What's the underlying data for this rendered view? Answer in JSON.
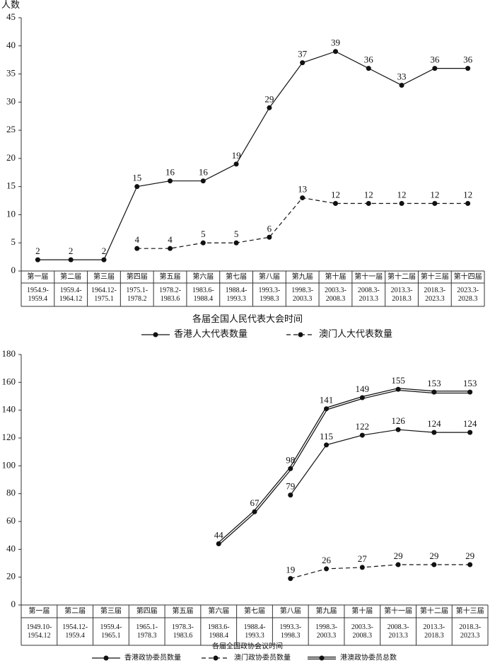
{
  "chart_data": [
    {
      "type": "line",
      "y_label": "人数",
      "x_label": "各届全国人民代表大会时间",
      "categories": [
        "第一届",
        "第二届",
        "第三届",
        "第四届",
        "第五届",
        "第六届",
        "第七届",
        "第八届",
        "第九届",
        "第十届",
        "第十一届",
        "第十二届",
        "第十三届",
        "第十四届"
      ],
      "periods": [
        [
          "1954.9-",
          "1959.4"
        ],
        [
          "1959.4-",
          "1964.12"
        ],
        [
          "1964.12-",
          "1975.1"
        ],
        [
          "1975.1-",
          "1978.2"
        ],
        [
          "1978.2-",
          "1983.6"
        ],
        [
          "1983.6-",
          "1988.4"
        ],
        [
          "1988.4-",
          "1993.3"
        ],
        [
          "1993.3-",
          "1998.3"
        ],
        [
          "1998.3-",
          "2003.3"
        ],
        [
          "2003.3-",
          "2008.3"
        ],
        [
          "2008.3-",
          "2013.3"
        ],
        [
          "2013.3-",
          "2018.3"
        ],
        [
          "2018.3-",
          "2023.3"
        ],
        [
          "2023.3-",
          "2028.3"
        ]
      ],
      "ylim": [
        0,
        45
      ],
      "yticks": [
        0,
        5,
        10,
        15,
        20,
        25,
        30,
        35,
        40,
        45
      ],
      "grid": false,
      "legend": "bottom",
      "series": [
        {
          "name": "香港人大代表数量",
          "color": "#111111",
          "line_style": "solid",
          "values": [
            2,
            2,
            2,
            15,
            16,
            16,
            19,
            29,
            37,
            39,
            36,
            33,
            36,
            36
          ]
        },
        {
          "name": "澳门人大代表数量",
          "color": "#111111",
          "line_style": "dashed",
          "values": [
            null,
            null,
            null,
            4,
            4,
            5,
            5,
            6,
            13,
            12,
            12,
            12,
            12,
            12
          ]
        }
      ]
    },
    {
      "type": "line",
      "x_label": "各届全国政协会议时间",
      "categories": [
        "第一届",
        "第二届",
        "第三届",
        "第四届",
        "第五届",
        "第六届",
        "第七届",
        "第八届",
        "第九届",
        "第十届",
        "第十一届",
        "第十二届",
        "第十三届"
      ],
      "periods": [
        [
          "1949.10-",
          "1954.12"
        ],
        [
          "1954.12-",
          "1959.4"
        ],
        [
          "1959.4-",
          "1965.1"
        ],
        [
          "1965.1-",
          "1978.3"
        ],
        [
          "1978.3-",
          "1983.6"
        ],
        [
          "1983.6-",
          "1988.4"
        ],
        [
          "1988.4-",
          "1993.3"
        ],
        [
          "1993.3-",
          "1998.3"
        ],
        [
          "1998.3-",
          "2003.3"
        ],
        [
          "2003.3-",
          "2008.3"
        ],
        [
          "2008.3-",
          "2013.3"
        ],
        [
          "2013.3-",
          "2018.3"
        ],
        [
          "2018.3-",
          "2023.3"
        ]
      ],
      "ylim": [
        0,
        180
      ],
      "yticks": [
        0,
        20,
        40,
        60,
        80,
        100,
        120,
        140,
        160,
        180
      ],
      "grid": false,
      "legend": "bottom",
      "series": [
        {
          "name": "香港政协委员数量",
          "color": "#111111",
          "line_style": "solid",
          "values": [
            null,
            null,
            null,
            null,
            null,
            null,
            null,
            79,
            115,
            122,
            126,
            124,
            124
          ]
        },
        {
          "name": "澳门政协委员数量",
          "color": "#111111",
          "line_style": "dashed",
          "values": [
            null,
            null,
            null,
            null,
            null,
            null,
            null,
            19,
            26,
            27,
            29,
            29,
            29
          ]
        },
        {
          "name": "港澳政协委员总数",
          "color": "#111111",
          "line_style": "double",
          "values": [
            null,
            null,
            null,
            null,
            null,
            44,
            67,
            98,
            141,
            149,
            155,
            153,
            153
          ]
        }
      ]
    }
  ]
}
